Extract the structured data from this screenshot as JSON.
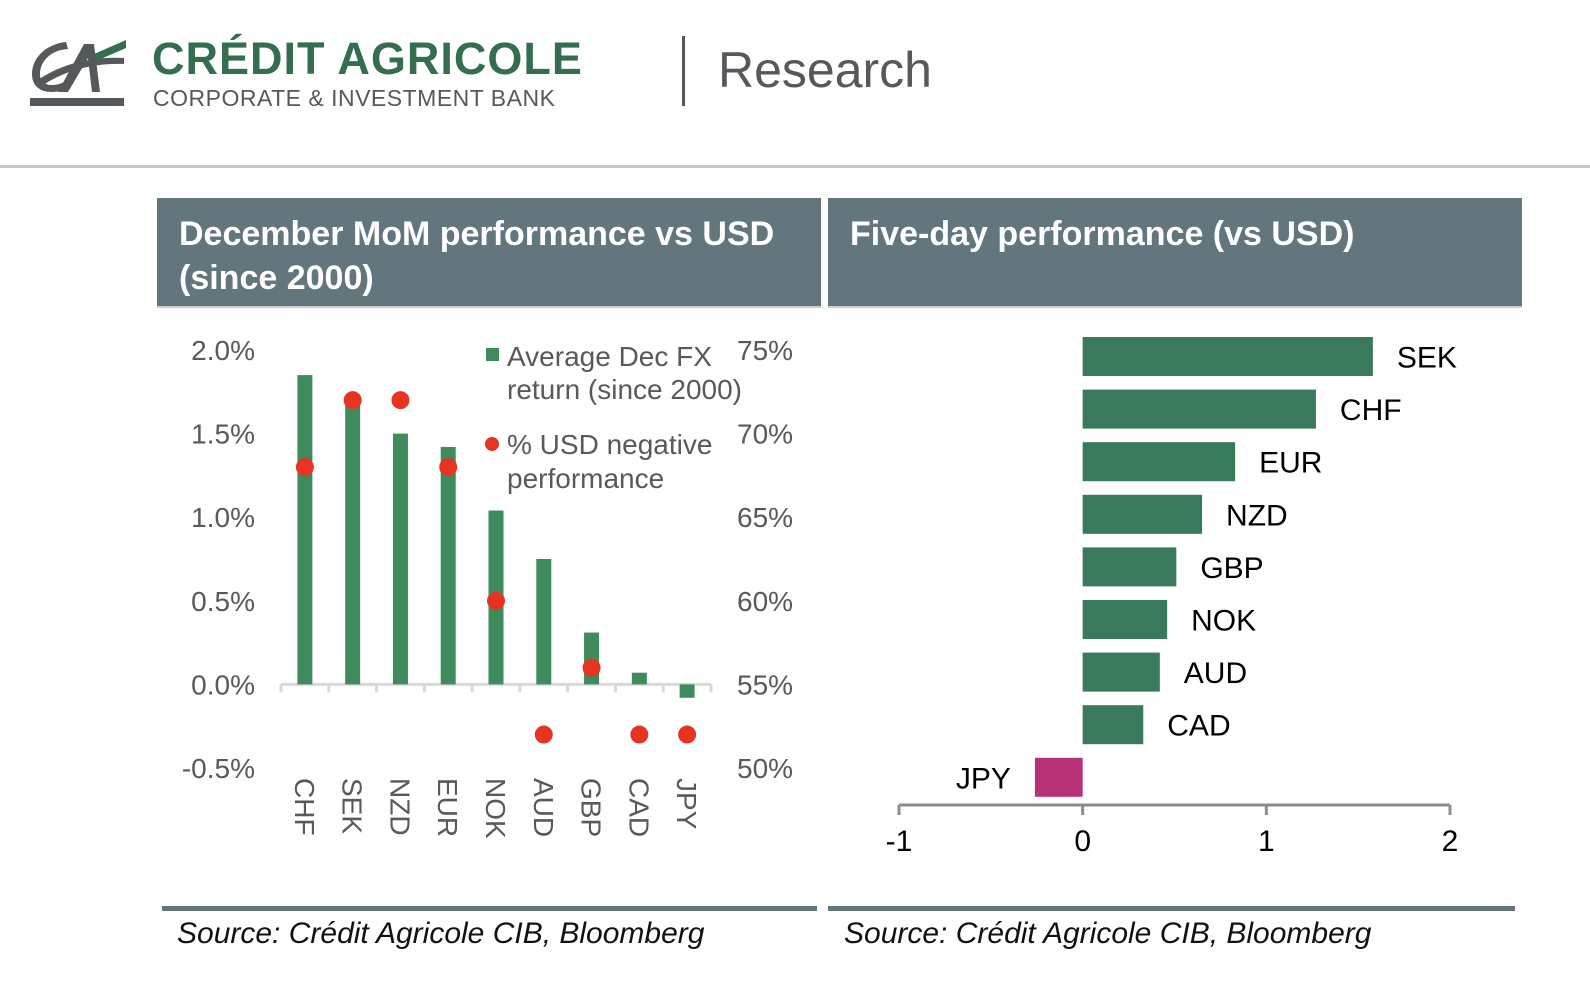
{
  "header": {
    "brand_name": "CRÉDIT AGRICOLE",
    "brand_sub": "CORPORATE & INVESTMENT BANK",
    "section": "Research",
    "logo_icon": "credit-agricole-logo",
    "colors": {
      "brand_green": "#356e4e",
      "brand_grey": "#55595c"
    }
  },
  "panels": {
    "left": {
      "title": "December MoM performance vs USD (since 2000)",
      "source": "Source: Crédit Agricole CIB, Bloomberg"
    },
    "right": {
      "title": "Five-day performance (vs USD)",
      "source": "Source: Crédit Agricole CIB, Bloomberg"
    },
    "title_bar_color": "#63757d"
  },
  "chart_data": [
    {
      "type": "bar",
      "title": "December MoM performance vs USD (since 2000)",
      "categories": [
        "CHF",
        "SEK",
        "NZD",
        "EUR",
        "NOK",
        "AUD",
        "GBP",
        "CAD",
        "JPY"
      ],
      "series": [
        {
          "name": "Average Dec FX return (since 2000)",
          "kind": "bar",
          "axis": "left",
          "color": "#3f8b5c",
          "values": [
            1.85,
            1.7,
            1.5,
            1.42,
            1.04,
            0.75,
            0.31,
            0.07,
            -0.08
          ]
        },
        {
          "name": "% USD negative performance",
          "kind": "scatter",
          "axis": "right",
          "color": "#e63323",
          "values": [
            68,
            72,
            72,
            68,
            60,
            52,
            56,
            52,
            52
          ]
        }
      ],
      "legend": [
        {
          "label_lines": [
            "Average Dec FX",
            "return (since 2000)"
          ],
          "marker": "square",
          "color": "#3f8b5c"
        },
        {
          "label_lines": [
            "% USD negative",
            "performance"
          ],
          "marker": "circle",
          "color": "#e63323"
        }
      ],
      "legend_position": "top-right",
      "y_left": {
        "ticks": [
          2.0,
          1.5,
          1.0,
          0.5,
          0.0,
          -0.5
        ],
        "tick_labels": [
          "2.0%",
          "1.5%",
          "1.0%",
          "0.5%",
          "0.0%",
          "-0.5%"
        ],
        "ylim": [
          -0.5,
          2.0
        ]
      },
      "y_right": {
        "ticks": [
          75,
          70,
          65,
          60,
          55,
          50
        ],
        "tick_labels": [
          "75%",
          "70%",
          "65%",
          "60%",
          "55%",
          "50%"
        ],
        "ylim": [
          50,
          75
        ]
      },
      "xlabel": "",
      "ylabel": "",
      "x_label_rotation": "vertical",
      "grid": false
    },
    {
      "type": "bar",
      "orientation": "horizontal",
      "title": "Five-day performance (vs USD)",
      "categories": [
        "SEK",
        "CHF",
        "EUR",
        "NZD",
        "GBP",
        "NOK",
        "AUD",
        "CAD",
        "JPY"
      ],
      "values": [
        1.58,
        1.27,
        0.83,
        0.65,
        0.51,
        0.46,
        0.42,
        0.33,
        -0.26
      ],
      "positive_color": "#387a5b",
      "negative_color": "#b83277",
      "x_ticks": [
        -1,
        0,
        1,
        2
      ],
      "x_tick_labels": [
        "-1",
        "0",
        "1",
        "2"
      ],
      "xlim": [
        -1,
        2
      ],
      "xlabel": "",
      "ylabel": "",
      "grid": false
    }
  ]
}
